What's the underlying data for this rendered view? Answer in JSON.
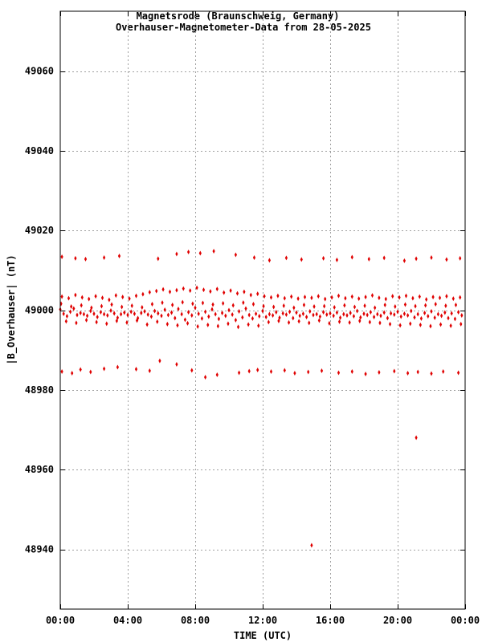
{
  "chart_data": {
    "type": "scatter",
    "title": "Magnetsrode (Braunschweig, Germany)",
    "subtitle": "Overhauser-Magnetometer-Data from 28-05-2025",
    "xlabel": "TIME (UTC)",
    "ylabel": "|B_Overhauser| (nT)",
    "xlim": [
      0,
      24
    ],
    "ylim": [
      48925,
      49075
    ],
    "x_tick_values": [
      0,
      4,
      8,
      12,
      16,
      20,
      24
    ],
    "x_tick_labels": [
      "00:00",
      "04:00",
      "08:00",
      "12:00",
      "16:00",
      "20:00",
      "00:00"
    ],
    "y_tick_values": [
      48940,
      48960,
      48980,
      49000,
      49020,
      49040,
      49060
    ],
    "y_tick_labels": [
      "48940",
      "48960",
      "48980",
      "49000",
      "49020",
      "49040",
      "49060"
    ],
    "grid": true,
    "color": "#e00000",
    "series": [
      {
        "x": [
          0.0,
          0.2,
          0.4,
          0.6,
          0.8,
          1.0,
          1.2,
          1.4,
          1.6,
          1.8,
          2.0,
          2.2,
          2.4,
          2.6,
          2.8,
          3.0,
          3.2,
          3.4,
          3.6,
          3.8,
          4.0,
          4.2,
          4.4,
          4.6,
          4.8,
          5.0,
          5.2,
          5.4,
          5.6,
          5.8,
          6.0,
          6.2,
          6.4,
          6.6,
          6.8,
          7.0,
          7.2,
          7.4,
          7.6,
          7.8,
          8.0,
          8.2,
          8.4,
          8.6,
          8.8,
          9.0,
          9.2,
          9.4,
          9.6,
          9.8,
          10.0,
          10.2,
          10.4,
          10.6,
          10.8,
          11.0,
          11.2,
          11.4,
          11.6,
          11.8,
          12.0,
          12.2,
          12.4,
          12.6,
          12.8,
          13.0,
          13.2,
          13.4,
          13.6,
          13.8,
          14.0,
          14.2,
          14.4,
          14.6,
          14.8,
          15.0,
          15.2,
          15.4,
          15.6,
          15.8,
          16.0,
          16.2,
          16.4,
          16.6,
          16.8,
          17.0,
          17.2,
          17.4,
          17.6,
          17.8,
          18.0,
          18.2,
          18.4,
          18.6,
          18.8,
          19.0,
          19.2,
          19.4,
          19.6,
          19.8,
          20.0,
          20.2,
          20.4,
          20.6,
          20.8,
          21.0,
          21.2,
          21.4,
          21.6,
          21.8,
          22.0,
          22.2,
          22.4,
          22.6,
          22.8,
          23.0,
          23.2,
          23.4,
          23.6,
          23.8,
          0.05,
          0.35,
          0.65,
          0.95,
          1.25,
          1.55,
          1.85,
          2.15,
          2.45,
          2.75,
          3.05,
          3.35,
          3.65,
          3.95,
          4.25,
          4.55,
          4.85,
          5.15,
          5.45,
          5.75,
          6.05,
          6.35,
          6.65,
          6.95,
          7.25,
          7.55,
          7.85,
          8.15,
          8.45,
          8.75,
          9.05,
          9.35,
          9.65,
          9.95,
          10.25,
          10.55,
          10.85,
          11.15,
          11.45,
          11.75,
          12.05,
          12.35,
          12.65,
          12.95,
          13.25,
          13.55,
          13.85,
          14.15,
          14.45,
          14.75,
          15.05,
          15.35,
          15.65,
          15.95,
          16.25,
          16.55,
          16.85,
          17.15,
          17.45,
          17.75,
          18.05,
          18.35,
          18.65,
          18.95,
          19.25,
          19.55,
          19.85,
          20.15,
          20.45,
          20.75,
          21.05,
          21.35,
          21.65,
          21.95,
          22.25,
          22.55,
          22.85,
          23.15,
          23.45,
          23.75,
          0.1,
          0.5,
          0.9,
          1.3,
          1.7,
          2.1,
          2.5,
          2.9,
          3.3,
          3.7,
          4.1,
          4.5,
          4.9,
          5.3,
          5.7,
          6.1,
          6.5,
          6.9,
          7.3,
          7.7,
          8.1,
          8.5,
          8.9,
          9.3,
          9.7,
          10.1,
          10.5,
          10.9,
          11.3,
          11.7,
          12.1,
          12.5,
          12.9,
          13.3,
          13.7,
          14.1,
          14.5,
          14.9,
          15.3,
          15.7,
          16.1,
          16.5,
          16.9,
          17.3,
          17.7,
          18.1,
          18.5,
          18.9,
          19.3,
          19.7,
          20.1,
          20.5,
          20.9,
          21.3,
          21.7,
          22.1,
          22.5,
          22.9,
          23.3,
          23.7,
          0.1,
          0.9,
          1.5,
          2.6,
          3.5,
          5.8,
          6.9,
          7.6,
          8.3,
          9.1,
          10.4,
          11.5,
          12.4,
          13.4,
          14.3,
          15.6,
          16.4,
          17.3,
          18.3,
          19.2,
          20.4,
          21.1,
          22.0,
          22.9,
          23.7,
          0.1,
          0.7,
          1.2,
          1.8,
          2.6,
          3.4,
          4.5,
          5.3,
          5.9,
          6.9,
          7.8,
          8.6,
          9.3,
          10.6,
          11.2,
          11.7,
          12.5,
          13.3,
          13.9,
          14.7,
          15.5,
          16.5,
          17.3,
          18.1,
          18.9,
          19.8,
          20.6,
          21.2,
          22.0,
          22.7,
          23.6,
          21.1,
          14.9
        ],
        "y": [
          49000.2,
          48999.1,
          48998.5,
          48999.6,
          49000.4,
          48998.8,
          48999.3,
          48999.0,
          48998.6,
          48999.8,
          48999.1,
          48998.3,
          48999.5,
          48999.0,
          48998.7,
          48999.9,
          48999.2,
          48998.1,
          48999.0,
          48999.4,
          48998.8,
          48999.6,
          48999.1,
          48998.0,
          48999.3,
          48999.7,
          48998.9,
          48998.4,
          48999.8,
          48999.2,
          48998.6,
          49000.1,
          48998.8,
          48999.4,
          48998.0,
          49000.3,
          48999.0,
          48997.6,
          48999.5,
          48998.7,
          49000.6,
          48999.1,
          48997.9,
          48999.6,
          48998.4,
          49000.2,
          48999.0,
          48997.8,
          48999.3,
          48998.6,
          49000.0,
          48998.9,
          48997.5,
          48999.7,
          48998.2,
          49000.4,
          48998.8,
          48997.9,
          48999.1,
          48998.5,
          48999.8,
          48998.3,
          48999.0,
          48998.7,
          48999.5,
          48998.1,
          48999.2,
          48998.9,
          48999.6,
          48998.0,
          48999.4,
          48998.6,
          48999.1,
          48998.3,
          48999.7,
          48998.8,
          48999.0,
          48998.4,
          48999.5,
          48998.9,
          48999.2,
          48998.6,
          48999.4,
          48998.1,
          48999.0,
          48998.7,
          48999.3,
          48998.5,
          48999.8,
          48998.2,
          48999.1,
          48998.8,
          48999.5,
          48998.3,
          48999.0,
          48998.6,
          48999.4,
          48998.0,
          48999.2,
          48998.9,
          48999.6,
          48998.4,
          48999.1,
          48998.7,
          48999.8,
          48998.2,
          48999.0,
          48997.9,
          48999.3,
          48998.5,
          48999.7,
          48998.1,
          48999.0,
          48998.6,
          48999.4,
          48998.0,
          48999.2,
          48997.8,
          48999.5,
          48998.7,
          49001.6,
          48997.2,
          49000.9,
          48996.8,
          49001.2,
          48997.5,
          49000.6,
          48997.0,
          49001.0,
          48996.6,
          49001.4,
          48997.3,
          49000.8,
          48996.9,
          49001.1,
          48997.4,
          49000.7,
          48996.4,
          49001.5,
          48997.1,
          49001.9,
          48996.5,
          49001.3,
          48996.2,
          49002.0,
          48996.7,
          49001.6,
          48995.9,
          49001.8,
          48996.3,
          49001.4,
          48996.0,
          49001.7,
          48996.6,
          49001.2,
          48995.8,
          49001.9,
          48996.4,
          49001.5,
          48996.1,
          49001.0,
          48997.0,
          49000.8,
          48997.3,
          49001.1,
          48996.9,
          49000.6,
          48997.2,
          49001.3,
          48996.8,
          49000.9,
          48997.4,
          49001.0,
          48996.7,
          49000.7,
          48997.1,
          49001.2,
          48996.9,
          49000.8,
          48997.3,
          49001.1,
          48997.0,
          49000.6,
          48996.8,
          49001.3,
          48996.5,
          49000.9,
          48996.2,
          49001.4,
          48996.6,
          49001.0,
          48996.3,
          49001.2,
          48996.0,
          49001.5,
          48996.4,
          49001.1,
          48996.1,
          49001.3,
          48996.5,
          49003.4,
          49003.0,
          49003.8,
          49003.2,
          49002.8,
          49003.5,
          49003.1,
          49002.6,
          49003.7,
          49003.3,
          49002.9,
          49003.6,
          49004.0,
          49004.5,
          49004.8,
          49005.2,
          49004.6,
          49005.0,
          49005.4,
          49004.9,
          49005.6,
          49005.1,
          49004.7,
          49005.3,
          49004.4,
          49004.9,
          49004.2,
          49004.6,
          49003.8,
          49004.1,
          49003.5,
          49003.2,
          49003.6,
          49003.0,
          49003.4,
          49002.9,
          49003.3,
          49003.1,
          49003.5,
          49002.8,
          49003.2,
          49003.6,
          49003.0,
          49003.4,
          49002.9,
          49003.3,
          49003.7,
          49003.1,
          49002.8,
          49003.5,
          49003.2,
          49003.6,
          49003.0,
          49003.4,
          49002.7,
          49003.3,
          49003.1,
          49003.5,
          49002.9,
          49003.2,
          49013.4,
          49013.0,
          49012.8,
          49013.2,
          49013.6,
          49012.9,
          49014.1,
          49014.6,
          49014.3,
          49014.8,
          49013.9,
          49013.2,
          49012.5,
          49013.1,
          49012.7,
          49013.0,
          49012.6,
          49013.3,
          49012.8,
          49013.1,
          49012.4,
          49012.9,
          49013.2,
          49012.7,
          49013.0,
          48984.6,
          48984.2,
          48985.1,
          48984.5,
          48985.3,
          48985.7,
          48985.2,
          48984.8,
          48987.3,
          48986.4,
          48984.9,
          48983.2,
          48983.8,
          48984.3,
          48984.7,
          48985.0,
          48984.6,
          48984.9,
          48984.2,
          48984.5,
          48984.8,
          48984.3,
          48984.6,
          48984.0,
          48984.4,
          48984.7,
          48984.2,
          48984.5,
          48984.1,
          48984.6,
          48984.3,
          48968.0,
          48941.0
        ]
      }
    ]
  }
}
